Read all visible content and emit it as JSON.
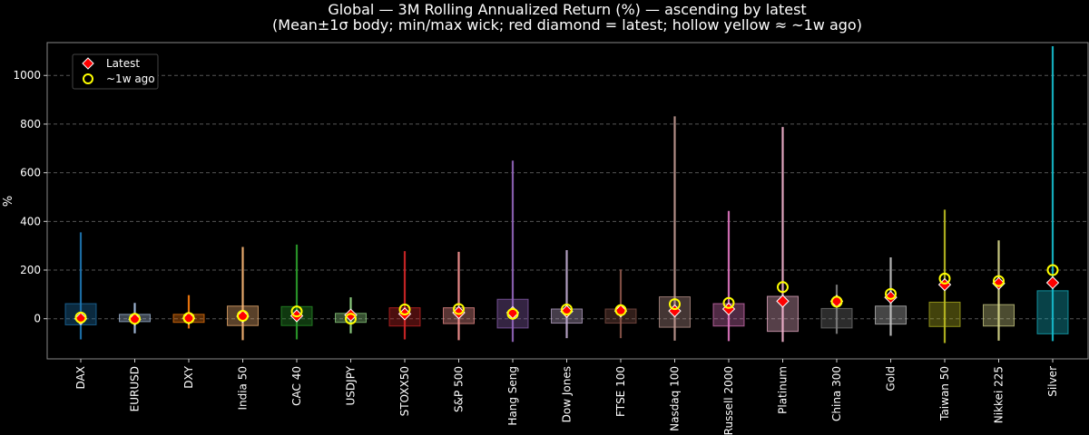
{
  "chart_data": {
    "type": "candlestick-range",
    "title": "Global — 3M Rolling Annualized Return (%) — ascending by latest",
    "subtitle": "(Mean±1σ body; min/max wick; red diamond = latest; hollow yellow ≈ ~1w ago)",
    "xlabel": "",
    "ylabel": "%",
    "ylim": [
      -165,
      1135
    ],
    "yticks": [
      0,
      200,
      400,
      600,
      800,
      1000
    ],
    "grid": true,
    "legend": {
      "placement": "top-left",
      "items": [
        {
          "label": "Latest",
          "marker": "diamond",
          "color": "#ff0000"
        },
        {
          "label": "~1w ago",
          "marker": "hollow-circle",
          "color": "#ffff00"
        }
      ]
    },
    "series": [
      {
        "name": "DAX",
        "color": "#1f77b4",
        "min": -85,
        "max": 355,
        "body_low": -25,
        "body_high": 62,
        "latest": 0,
        "week_ago": 5
      },
      {
        "name": "EURUSD",
        "color": "#aec7e8",
        "min": -60,
        "max": 65,
        "body_low": -12,
        "body_high": 18,
        "latest": -2,
        "week_ago": 0
      },
      {
        "name": "DXY",
        "color": "#ff7f0e",
        "min": -40,
        "max": 97,
        "body_low": -15,
        "body_high": 18,
        "latest": 2,
        "week_ago": 3
      },
      {
        "name": "India 50",
        "color": "#ffbb78",
        "min": -88,
        "max": 295,
        "body_low": -28,
        "body_high": 52,
        "latest": 10,
        "week_ago": 12
      },
      {
        "name": "CAC 40",
        "color": "#2ca02c",
        "min": -85,
        "max": 305,
        "body_low": -28,
        "body_high": 50,
        "latest": 12,
        "week_ago": 30
      },
      {
        "name": "USDJPY",
        "color": "#98df8a",
        "min": -60,
        "max": 88,
        "body_low": -15,
        "body_high": 22,
        "latest": 15,
        "week_ago": 0
      },
      {
        "name": "STOXX50",
        "color": "#d62728",
        "min": -85,
        "max": 278,
        "body_low": -30,
        "body_high": 45,
        "latest": 20,
        "week_ago": 38
      },
      {
        "name": "S&P 500",
        "color": "#ff9896",
        "min": -88,
        "max": 275,
        "body_low": -20,
        "body_high": 45,
        "latest": 25,
        "week_ago": 40
      },
      {
        "name": "Hang Seng",
        "color": "#9467bd",
        "min": -95,
        "max": 650,
        "body_low": -38,
        "body_high": 80,
        "latest": 25,
        "week_ago": 20
      },
      {
        "name": "Dow Jones",
        "color": "#c5b0d5",
        "min": -80,
        "max": 282,
        "body_low": -18,
        "body_high": 40,
        "latest": 30,
        "week_ago": 38
      },
      {
        "name": "FTSE 100",
        "color": "#8c564b",
        "min": -80,
        "max": 203,
        "body_low": -18,
        "body_high": 40,
        "latest": 32,
        "week_ago": 35
      },
      {
        "name": "Nasdaq 100",
        "color": "#c49c94",
        "min": -90,
        "max": 832,
        "body_low": -35,
        "body_high": 90,
        "latest": 32,
        "week_ago": 60
      },
      {
        "name": "Russell 2000",
        "color": "#e377c2",
        "min": -92,
        "max": 443,
        "body_low": -30,
        "body_high": 62,
        "latest": 40,
        "week_ago": 65
      },
      {
        "name": "Platinum",
        "color": "#f7b6d2",
        "min": -95,
        "max": 788,
        "body_low": -52,
        "body_high": 92,
        "latest": 72,
        "week_ago": 130
      },
      {
        "name": "China 300",
        "color": "#7f7f7f",
        "min": -62,
        "max": 140,
        "body_low": -38,
        "body_high": 42,
        "latest": 72,
        "week_ago": 70
      },
      {
        "name": "Gold",
        "color": "#c7c7c7",
        "min": -70,
        "max": 252,
        "body_low": -22,
        "body_high": 52,
        "latest": 88,
        "week_ago": 102
      },
      {
        "name": "Taiwan 50",
        "color": "#bcbd22",
        "min": -100,
        "max": 448,
        "body_low": -32,
        "body_high": 68,
        "latest": 140,
        "week_ago": 165
      },
      {
        "name": "Nikkei 225",
        "color": "#dbdb8d",
        "min": -90,
        "max": 322,
        "body_low": -30,
        "body_high": 58,
        "latest": 145,
        "week_ago": 155
      },
      {
        "name": "Silver",
        "color": "#17becf",
        "min": -92,
        "max": 1120,
        "body_low": -62,
        "body_high": 115,
        "latest": 148,
        "week_ago": 200
      }
    ]
  }
}
